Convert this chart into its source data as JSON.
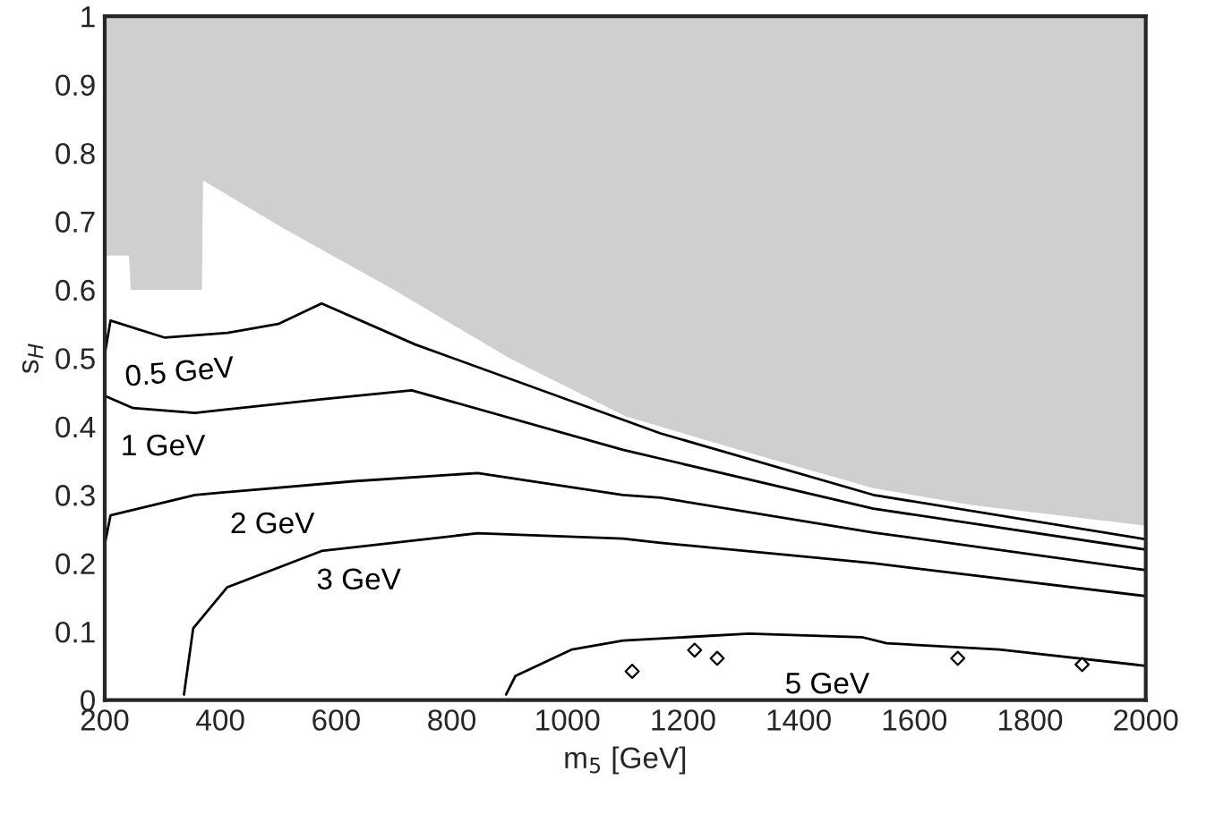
{
  "chart_data": {
    "type": "line",
    "xlabel": "m$_{5}$ [GeV]",
    "ylabel": "s$_{H}$",
    "xlim": [
      200,
      2000
    ],
    "ylim": [
      0,
      1
    ],
    "xticks": [
      200,
      400,
      600,
      800,
      1000,
      1200,
      1400,
      1600,
      1800,
      2000
    ],
    "yticks": [
      0,
      0.1,
      0.2,
      0.3,
      0.4,
      0.5,
      0.6,
      0.7,
      0.8,
      0.9,
      1
    ],
    "grid": false,
    "stacked": true,
    "legend": false,
    "marker": "none",
    "line_style": "solid",
    "series": [
      {
        "type": "area",
        "color": "#ffffff",
        "x": [
          200,
          242,
          245,
          368,
          370,
          509,
          700,
          900,
          1100,
          1300,
          1529,
          1700,
          1900,
          2000
        ],
        "values": [
          0.65,
          0.65,
          0.6,
          0.6,
          0.76,
          0.69,
          0.6,
          0.5,
          0.415,
          0.365,
          0.31,
          0.285,
          0.265,
          0.255
        ]
      },
      {
        "type": "area",
        "color": "#cfcfcf",
        "x": [
          200,
          242,
          245,
          368,
          370,
          509,
          700,
          900,
          1100,
          1300,
          1529,
          1700,
          1900,
          2000
        ],
        "values": [
          0.35,
          0.35,
          0.4,
          0.4,
          0.24,
          0.31,
          0.4,
          0.5,
          0.585,
          0.635,
          0.69,
          0.715,
          0.735,
          0.745
        ]
      },
      {
        "name": "0.5 GeV",
        "color": "#000000",
        "x": [
          200,
          210,
          304,
          412,
          500,
          575,
          737,
          1161,
          1529,
          2000
        ],
        "values": [
          0.505,
          0.555,
          0.53,
          0.537,
          0.55,
          0.58,
          0.52,
          0.39,
          0.3,
          0.235
        ]
      },
      {
        "name": "1 GeV",
        "color": "#000000",
        "x": [
          200,
          249,
          356,
          575,
          731,
          1096,
          1161,
          1529,
          2000
        ],
        "values": [
          0.445,
          0.427,
          0.42,
          0.44,
          0.453,
          0.366,
          0.353,
          0.28,
          0.22
        ]
      },
      {
        "name": "2 GeV",
        "color": "#000000",
        "x": [
          200,
          210,
          356,
          630,
          845,
          1096,
          1161,
          1529,
          2000
        ],
        "values": [
          0.227,
          0.27,
          0.3,
          0.32,
          0.332,
          0.3,
          0.296,
          0.245,
          0.19
        ]
      },
      {
        "name": "3 GeV",
        "color": "#000000",
        "x": [
          337,
          353,
          412,
          575,
          845,
          1096,
          1161,
          1529,
          2000
        ],
        "values": [
          0.008,
          0.105,
          0.165,
          0.218,
          0.244,
          0.236,
          0.23,
          0.2,
          0.152
        ]
      },
      {
        "name": "5 GeV",
        "color": "#000000",
        "x": [
          894,
          910,
          1008,
          1096,
          1314,
          1509,
          1552,
          1747,
          2000
        ],
        "values": [
          0.008,
          0.035,
          0.074,
          0.087,
          0.097,
          0.092,
          0.083,
          0.074,
          0.05
        ]
      },
      {
        "type": "scatter",
        "color": "#000000",
        "marker": "diamond",
        "x": [
          1112,
          1220,
          1259,
          1675,
          1890
        ],
        "values": [
          0.042,
          0.073,
          0.061,
          0.061,
          0.052
        ]
      }
    ]
  }
}
